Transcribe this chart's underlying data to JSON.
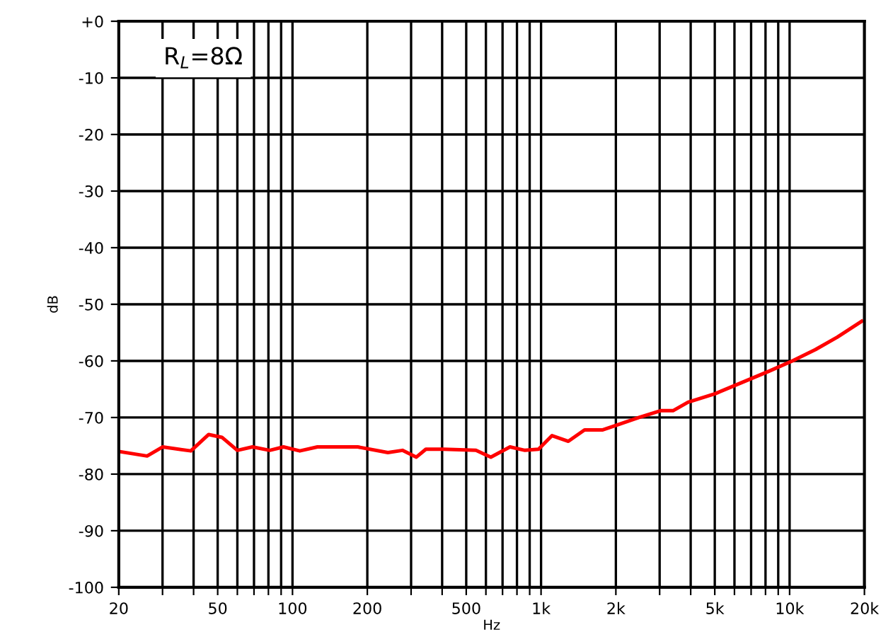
{
  "chart_data": {
    "type": "line",
    "xlabel": "Hz",
    "ylabel": "dB",
    "annotations": [
      "R$_{L}$=8Ω"
    ],
    "log": "x",
    "grid": true,
    "legend": false,
    "marker": "none",
    "line_style": "solid",
    "xlim": [
      20,
      20000
    ],
    "ylim": [
      -100,
      0
    ],
    "xticks": [
      20,
      {
        "value": 30,
        "label": null
      },
      {
        "value": 40,
        "label": null
      },
      50,
      {
        "value": 60,
        "label": null
      },
      {
        "value": 70,
        "label": null
      },
      {
        "value": 80,
        "label": null
      },
      {
        "value": 90,
        "label": null
      },
      100,
      200,
      {
        "value": 300,
        "label": null
      },
      {
        "value": 400,
        "label": null
      },
      500,
      {
        "value": 600,
        "label": null
      },
      {
        "value": 700,
        "label": null
      },
      {
        "value": 800,
        "label": null
      },
      {
        "value": 900,
        "label": null
      },
      {
        "value": 1000,
        "label": "1k"
      },
      {
        "value": 2000,
        "label": "2k"
      },
      {
        "value": 3000,
        "label": null
      },
      {
        "value": 4000,
        "label": null
      },
      {
        "value": 5000,
        "label": "5k"
      },
      {
        "value": 6000,
        "label": null
      },
      {
        "value": 7000,
        "label": null
      },
      {
        "value": 8000,
        "label": null
      },
      {
        "value": 9000,
        "label": null
      },
      {
        "value": 10000,
        "label": "10k"
      },
      {
        "value": 20000,
        "label": "20k"
      }
    ],
    "yticks": [
      {
        "value": 0,
        "label": "+0"
      },
      -10,
      -20,
      -30,
      -40,
      -50,
      -60,
      -70,
      -80,
      -90,
      -100
    ],
    "series": [
      {
        "color": "#ff0000",
        "x": [
          20,
          26,
          30,
          39,
          46,
          52,
          60,
          69,
          81,
          92,
          107,
          126,
          183,
          242,
          277,
          315,
          344,
          405,
          547,
          628,
          750,
          861,
          977,
          1107,
          1288,
          1496,
          1763,
          2000,
          2478,
          3027,
          3396,
          3900,
          5012,
          6440,
          8280,
          10260,
          12700,
          15560,
          19500
        ],
        "values": [
          -76,
          -76.8,
          -75.2,
          -75.9,
          -73,
          -73.5,
          -75.8,
          -75.2,
          -75.8,
          -75.2,
          -75.9,
          -75.2,
          -75.2,
          -76.2,
          -75.8,
          -77,
          -75.6,
          -75.6,
          -75.8,
          -77,
          -75.2,
          -75.8,
          -75.6,
          -73.2,
          -74.2,
          -72.2,
          -72.2,
          -71.4,
          -70,
          -68.8,
          -68.8,
          -67.3,
          -65.8,
          -63.8,
          -61.8,
          -60,
          -58,
          -55.8,
          -53
        ]
      }
    ]
  }
}
